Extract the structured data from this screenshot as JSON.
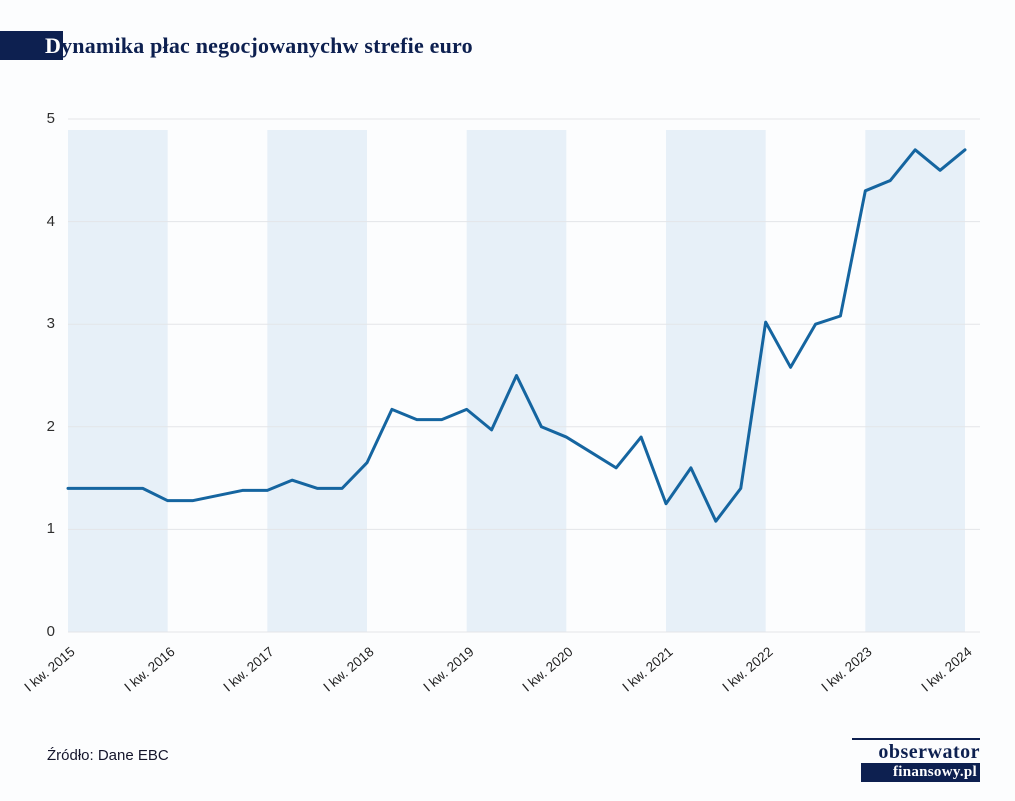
{
  "header": {
    "title": "Dynamika płac negocjowanychw strefie euro"
  },
  "chart_data": {
    "type": "line",
    "title": "Dynamika płac negocjowanychw strefie euro",
    "frequency": "quarterly",
    "x_tick_labels": [
      "I kw. 2015",
      "I kw. 2016",
      "I kw. 2017",
      "I kw. 2018",
      "I kw. 2019",
      "I kw. 2020",
      "I kw. 2021",
      "I kw. 2022",
      "I kw. 2023",
      "I kw. 2024"
    ],
    "points_per_tick": 4,
    "values": [
      1.4,
      1.4,
      1.4,
      1.4,
      1.28,
      1.28,
      1.33,
      1.38,
      1.38,
      1.48,
      1.4,
      1.4,
      1.65,
      2.17,
      2.07,
      2.07,
      2.17,
      1.97,
      2.5,
      2.0,
      1.9,
      1.75,
      1.6,
      1.9,
      1.25,
      1.6,
      1.08,
      1.4,
      3.02,
      2.58,
      3.0,
      3.08,
      4.3,
      4.4,
      4.7,
      4.5,
      4.7
    ],
    "ylim": [
      0,
      5
    ],
    "yticks": [
      0,
      1,
      2,
      3,
      4,
      5
    ],
    "grid": true,
    "legend": false,
    "line_color": "#1565a0",
    "band_color": "#e7f0f8",
    "grid_color": "#e3e5e8",
    "shaded_band_years": [
      "2015",
      "2017",
      "2019",
      "2021",
      "2023"
    ]
  },
  "footer": {
    "source": "Źródło: Dane EBC",
    "logo_top": "obserwator",
    "logo_bottom": "finansowy.pl"
  }
}
